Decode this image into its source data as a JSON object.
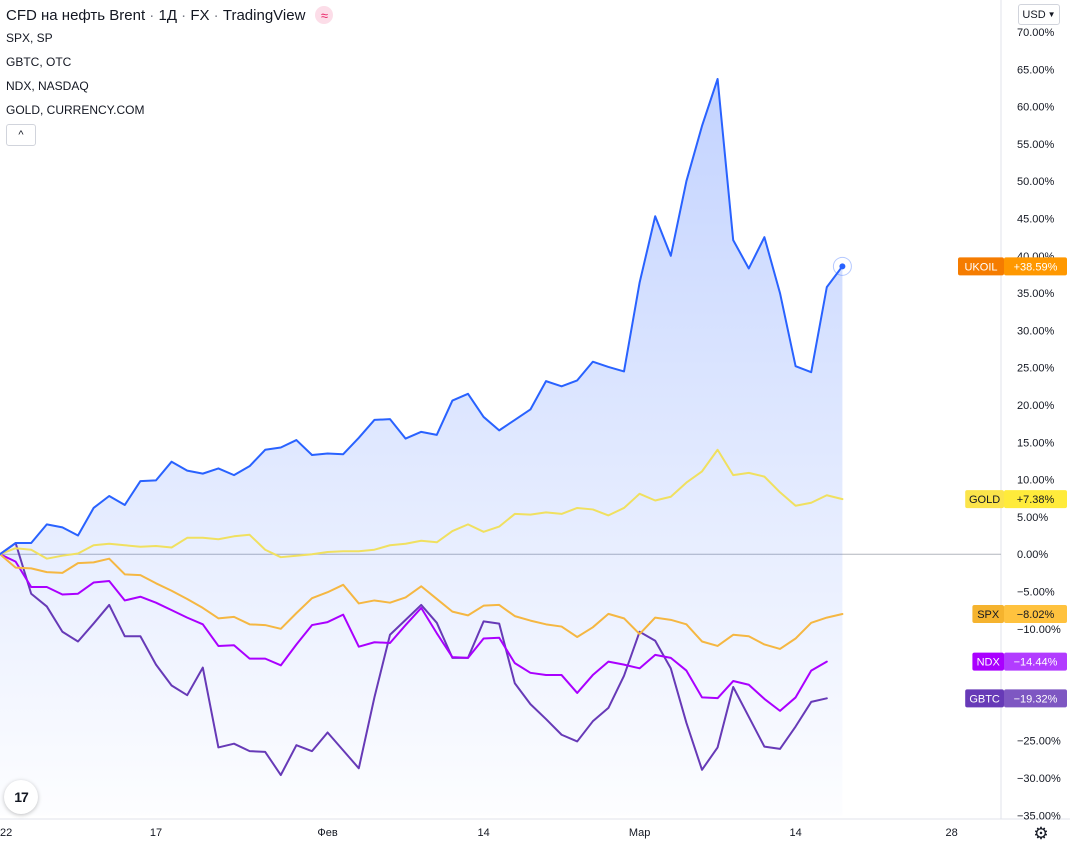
{
  "header": {
    "symbol": "CFD на нефть Brent",
    "interval": "1Д",
    "exchange": "FX",
    "source": "TradingView",
    "badge_icon": "≈"
  },
  "legend": {
    "items": [
      "SPX, SP",
      "GBTC, OTC",
      "NDX, NASDAQ",
      "GOLD, CURRENCY.COM"
    ],
    "collapse_icon": "^"
  },
  "currency": "USD",
  "logo": "17",
  "settings_icon": "⚙",
  "chart_data": {
    "type": "line",
    "x_ticks": [
      {
        "label": "22",
        "i": 0
      },
      {
        "label": "17",
        "i": 10
      },
      {
        "label": "Фев",
        "i": 21
      },
      {
        "label": "14",
        "i": 31
      },
      {
        "label": "Мар",
        "i": 41
      },
      {
        "label": "14",
        "i": 51
      },
      {
        "label": "28",
        "i": 61
      }
    ],
    "y_ticks": [
      "70.00%",
      "65.00%",
      "60.00%",
      "55.00%",
      "50.00%",
      "45.00%",
      "40.00%",
      "35.00%",
      "30.00%",
      "25.00%",
      "20.00%",
      "15.00%",
      "10.00%",
      "5.00%",
      "0.00%",
      "−5.00%",
      "−10.00%",
      "−25.00%",
      "−30.00%",
      "−35.00%"
    ],
    "y_tick_values": [
      70,
      65,
      60,
      55,
      50,
      45,
      40,
      35,
      30,
      25,
      20,
      15,
      10,
      5,
      0,
      -5,
      -10,
      -25,
      -30,
      -35
    ],
    "ylim": [
      -35,
      70
    ],
    "series": [
      {
        "name": "UKOIL",
        "label": "+38.59%",
        "color": "#2962ff",
        "text_color": "#131722",
        "tag_color": "#f57c00",
        "val_color": "#ff9800",
        "tag_text": "#ffffff",
        "area": true,
        "values": [
          0,
          1.5,
          1.5,
          4,
          3.6,
          2.5,
          6.2,
          7.8,
          6.6,
          9.8,
          9.9,
          12.4,
          11.2,
          10.8,
          11.5,
          10.6,
          11.8,
          14,
          14.3,
          15.3,
          13.3,
          13.5,
          13.4,
          15.6,
          18,
          18.1,
          15.5,
          16.4,
          16,
          20.6,
          21.5,
          18.4,
          16.6,
          18,
          19.4,
          23.2,
          22.5,
          23.3,
          25.8,
          25.1,
          24.5,
          36.4,
          45.3,
          40,
          50,
          57.4,
          63.7,
          42.1,
          38.3,
          42.5,
          35,
          25.2,
          24.4,
          35.8,
          38.59
        ]
      },
      {
        "name": "GOLD",
        "label": "+7.38%",
        "color": "#f0e060",
        "tag_color": "#fbe44b",
        "val_color": "#ffeb3b",
        "tag_text": "#131722",
        "values": [
          0,
          0.8,
          0.6,
          -0.6,
          -0.2,
          0.1,
          1.2,
          1.4,
          1.2,
          1,
          1.1,
          0.9,
          2.2,
          2.2,
          2,
          2.4,
          2.6,
          0.6,
          -0.4,
          -0.2,
          0,
          0.3,
          0.4,
          0.4,
          0.6,
          1.2,
          1.4,
          1.8,
          1.6,
          3.1,
          4,
          3,
          3.7,
          5.4,
          5.3,
          5.6,
          5.4,
          6.2,
          6,
          5.2,
          6.2,
          8.1,
          7.2,
          7.7,
          9.6,
          11.1,
          14,
          10.6,
          10.9,
          10.4,
          8.3,
          6.5,
          6.9,
          7.9,
          7.38
        ]
      },
      {
        "name": "SPX",
        "label": "−8.02%",
        "color": "#f5b742",
        "tag_color": "#f5b32e",
        "val_color": "#ffc23e",
        "tag_text": "#131722",
        "values": [
          0,
          -1.8,
          -1.9,
          -2.4,
          -2.5,
          -1.2,
          -1.1,
          -0.6,
          -2.7,
          -2.8,
          -3.9,
          -4.9,
          -6,
          -7.2,
          -8.6,
          -8.4,
          -9.4,
          -9.5,
          -10,
          -7.9,
          -5.9,
          -5.1,
          -4.1,
          -6.6,
          -6.2,
          -6.5,
          -5.8,
          -4.3,
          -6,
          -7.7,
          -8.2,
          -6.9,
          -6.8,
          -8.3,
          -8.9,
          -9.4,
          -9.7,
          -11.1,
          -9.8,
          -8,
          -8.6,
          -10.7,
          -8.5,
          -8.8,
          -9.4,
          -11.7,
          -12.3,
          -10.8,
          -11,
          -12.1,
          -12.7,
          -11.3,
          -9.2,
          -8.5,
          -8.02
        ]
      },
      {
        "name": "NDX",
        "label": "−14.44%",
        "color": "#aa00ff",
        "tag_color": "#aa00ff",
        "val_color": "#b23cff",
        "tag_text": "#ffffff",
        "values": [
          0,
          -1,
          -4.4,
          -4.4,
          -5.4,
          -5.3,
          -3.8,
          -3.6,
          -6.2,
          -5.7,
          -6.5,
          -7.5,
          -8.5,
          -9.4,
          -12.3,
          -12.2,
          -14,
          -14,
          -14.9,
          -12.1,
          -9.5,
          -9.1,
          -8.1,
          -12.4,
          -11.8,
          -11.9,
          -9.5,
          -7.2,
          -10.6,
          -13.8,
          -13.9,
          -11.3,
          -11.2,
          -14.6,
          -15.9,
          -16.2,
          -16.2,
          -18.6,
          -16.2,
          -14.4,
          -14.8,
          -15.3,
          -13.5,
          -13.9,
          -15.6,
          -19.2,
          -19.3,
          -17,
          -17.5,
          -19.4,
          -21,
          -19.2,
          -15.6,
          -14.4
        ]
      },
      {
        "name": "GBTC",
        "label": "−19.32%",
        "color": "#673ab7",
        "tag_color": "#673ab7",
        "val_color": "#7e57c2",
        "tag_text": "#ffffff",
        "values": [
          0,
          1.5,
          -5.3,
          -7,
          -10.4,
          -11.7,
          -9.3,
          -6.8,
          -11,
          -11,
          -14.8,
          -17.6,
          -18.9,
          -15.2,
          -25.9,
          -25.4,
          -26.4,
          -26.5,
          -29.6,
          -25.6,
          -26.4,
          -23.9,
          -26.3,
          -28.7,
          -19.2,
          -10.8,
          -8.8,
          -6.8,
          -9.2,
          -13.9,
          -13.9,
          -9,
          -9.3,
          -17.3,
          -20.1,
          -22.1,
          -24.2,
          -25.1,
          -22.4,
          -20.6,
          -16.3,
          -10.4,
          -11.6,
          -15.3,
          -22.6,
          -28.9,
          -25.9,
          -17.8,
          -21.8,
          -25.8,
          -26.1,
          -23.1,
          -19.8,
          -19.32
        ]
      }
    ]
  }
}
